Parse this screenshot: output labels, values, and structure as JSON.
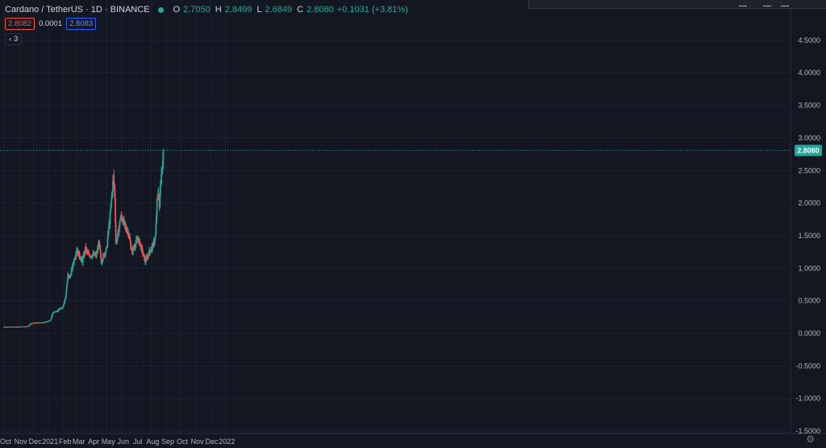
{
  "header": {
    "symbol": "Cardano / TetherUS · 1D · BINANCE",
    "o_label": "O",
    "o_value": "2.7050",
    "h_label": "H",
    "h_value": "2.8499",
    "l_label": "L",
    "l_value": "2.6849",
    "c_label": "C",
    "c_value": "2.8080",
    "change": "+0.1031 (+3.81%)"
  },
  "quote": {
    "bid": "2.8082",
    "spread": "0.0001",
    "ask": "2.8083"
  },
  "indicators": {
    "label": "3"
  },
  "colors": {
    "background": "#131722",
    "up": "#26a69a",
    "down": "#ef5350",
    "grid": "#1e2230",
    "axis_text": "#b2b5be"
  },
  "chart_data": {
    "type": "candlestick",
    "symbol": "Cardano / TetherUS",
    "interval": "1D",
    "exchange": "BINANCE",
    "x_ticks": [
      "Oct",
      "Nov",
      "Dec",
      "2021",
      "Feb",
      "Mar",
      "Apr",
      "May",
      "Jun",
      "Jul",
      "Aug",
      "Sep",
      "Oct",
      "Nov",
      "Dec",
      "2022"
    ],
    "y_ticks": [
      "4.5000",
      "4.0000",
      "3.5000",
      "3.0000",
      "2.5000",
      "2.0000",
      "1.5000",
      "1.0000",
      "0.5000",
      "0.0000",
      "-0.5000",
      "-1.0000",
      "-1.5000"
    ],
    "ylim": [
      -1.5,
      5.0
    ],
    "last_price": "2.8080",
    "keypoints": [
      [
        "2020-10-01",
        0.1
      ],
      [
        "2020-11-01",
        0.1
      ],
      [
        "2020-11-20",
        0.11
      ],
      [
        "2020-11-25",
        0.15
      ],
      [
        "2020-12-05",
        0.16
      ],
      [
        "2020-12-25",
        0.17
      ],
      [
        "2021-01-05",
        0.2
      ],
      [
        "2021-01-10",
        0.32
      ],
      [
        "2021-01-20",
        0.35
      ],
      [
        "2021-01-30",
        0.4
      ],
      [
        "2021-02-05",
        0.55
      ],
      [
        "2021-02-10",
        0.9
      ],
      [
        "2021-02-14",
        0.85
      ],
      [
        "2021-02-22",
        1.1
      ],
      [
        "2021-02-28",
        1.3
      ],
      [
        "2021-03-05",
        1.2
      ],
      [
        "2021-03-12",
        1.1
      ],
      [
        "2021-03-18",
        1.3
      ],
      [
        "2021-03-25",
        1.2
      ],
      [
        "2021-04-01",
        1.2
      ],
      [
        "2021-04-10",
        1.2
      ],
      [
        "2021-04-15",
        1.4
      ],
      [
        "2021-04-20",
        1.1
      ],
      [
        "2021-04-25",
        1.2
      ],
      [
        "2021-05-01",
        1.3
      ],
      [
        "2021-05-05",
        1.6
      ],
      [
        "2021-05-08",
        1.8
      ],
      [
        "2021-05-15",
        2.4
      ],
      [
        "2021-05-18",
        2.1
      ],
      [
        "2021-05-20",
        1.4
      ],
      [
        "2021-05-24",
        1.5
      ],
      [
        "2021-05-30",
        1.8
      ],
      [
        "2021-06-03",
        1.75
      ],
      [
        "2021-06-10",
        1.6
      ],
      [
        "2021-06-15",
        1.55
      ],
      [
        "2021-06-22",
        1.25
      ],
      [
        "2021-07-01",
        1.4
      ],
      [
        "2021-07-05",
        1.45
      ],
      [
        "2021-07-12",
        1.3
      ],
      [
        "2021-07-20",
        1.1
      ],
      [
        "2021-07-28",
        1.25
      ],
      [
        "2021-08-05",
        1.35
      ],
      [
        "2021-08-10",
        1.5
      ],
      [
        "2021-08-13",
        2.0
      ],
      [
        "2021-08-16",
        2.2
      ],
      [
        "2021-08-18",
        1.9
      ],
      [
        "2021-08-20",
        2.3
      ],
      [
        "2021-08-23",
        2.5
      ],
      [
        "2021-08-25",
        2.7
      ],
      [
        "2021-08-26",
        2.808
      ]
    ]
  }
}
